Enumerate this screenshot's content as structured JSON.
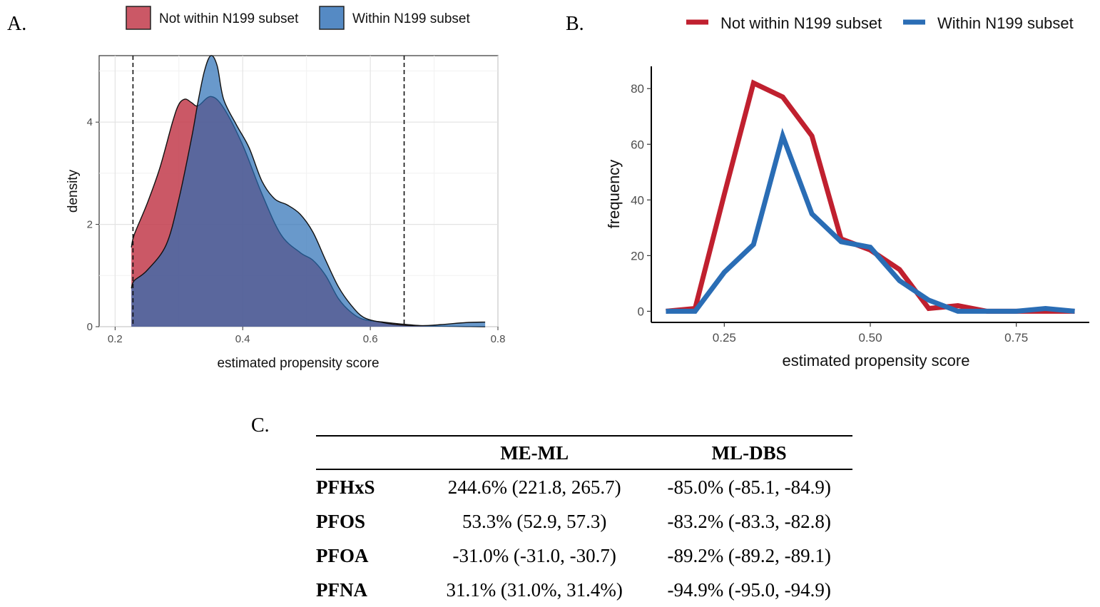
{
  "panels": {
    "a_label": "A.",
    "b_label": "B.",
    "c_label": "C."
  },
  "colors": {
    "not_within": "#c23b4b",
    "within": "#2a6db5",
    "overlap": "#3d4e8a"
  },
  "chart_data": [
    {
      "type": "area",
      "panel": "A",
      "xlabel": "estimated propensity score",
      "ylabel": "density",
      "xlim": [
        0.175,
        0.8
      ],
      "ylim": [
        0,
        5.3
      ],
      "xticks": [
        0.2,
        0.4,
        0.6,
        0.8
      ],
      "xtick_labels": [
        "0.2",
        "0.4",
        "0.6",
        "0.8"
      ],
      "yticks": [
        0,
        2,
        4
      ],
      "ytick_labels": [
        "0",
        "2",
        "4"
      ],
      "grid": true,
      "legend_position": "top",
      "vlines": [
        0.228,
        0.653
      ],
      "series": [
        {
          "name": "Not within N199 subset",
          "x": [
            0.2255,
            0.23,
            0.25,
            0.27,
            0.29,
            0.3,
            0.31,
            0.32,
            0.33,
            0.35,
            0.37,
            0.4,
            0.43,
            0.46,
            0.49,
            0.51,
            0.53,
            0.55,
            0.57,
            0.59,
            0.62,
            0.65,
            0.68,
            0.71,
            0.75,
            0.78
          ],
          "values": [
            1.55,
            1.8,
            2.4,
            3.1,
            4.0,
            4.35,
            4.45,
            4.38,
            4.32,
            4.5,
            4.28,
            3.55,
            2.6,
            1.8,
            1.45,
            1.3,
            1.0,
            0.55,
            0.28,
            0.14,
            0.09,
            0.05,
            0.02,
            0.01,
            0.005,
            0.0
          ]
        },
        {
          "name": "Within N199 subset",
          "x": [
            0.2255,
            0.23,
            0.25,
            0.28,
            0.3,
            0.32,
            0.33,
            0.34,
            0.35,
            0.36,
            0.37,
            0.39,
            0.41,
            0.43,
            0.45,
            0.47,
            0.49,
            0.51,
            0.53,
            0.55,
            0.57,
            0.59,
            0.62,
            0.65,
            0.68,
            0.71,
            0.75,
            0.78
          ],
          "values": [
            0.75,
            0.9,
            1.1,
            1.6,
            2.5,
            3.7,
            4.4,
            5.0,
            5.3,
            5.1,
            4.45,
            3.95,
            3.5,
            2.85,
            2.5,
            2.38,
            2.2,
            1.85,
            1.3,
            0.78,
            0.42,
            0.18,
            0.08,
            0.03,
            0.02,
            0.04,
            0.08,
            0.09
          ]
        }
      ]
    },
    {
      "type": "line",
      "panel": "B",
      "xlabel": "estimated propensity score",
      "ylabel": "frequency",
      "xlim": [
        0.125,
        0.875
      ],
      "ylim": [
        -4,
        88
      ],
      "xticks": [
        0.25,
        0.5,
        0.75
      ],
      "xtick_labels": [
        "0.25",
        "0.50",
        "0.75"
      ],
      "yticks": [
        0,
        20,
        40,
        60,
        80
      ],
      "ytick_labels": [
        "0",
        "20",
        "40",
        "60",
        "80"
      ],
      "grid": false,
      "legend_position": "top",
      "series": [
        {
          "name": "Not within N199 subset",
          "x": [
            0.15,
            0.2,
            0.25,
            0.3,
            0.35,
            0.4,
            0.45,
            0.5,
            0.55,
            0.6,
            0.65,
            0.7,
            0.75,
            0.8,
            0.85
          ],
          "values": [
            0,
            1,
            42,
            82,
            77,
            63,
            26,
            22,
            15,
            1,
            2,
            0,
            0,
            0,
            0
          ]
        },
        {
          "name": "Within N199 subset",
          "x": [
            0.15,
            0.2,
            0.25,
            0.3,
            0.35,
            0.4,
            0.45,
            0.5,
            0.55,
            0.6,
            0.65,
            0.7,
            0.75,
            0.8,
            0.85
          ],
          "values": [
            0,
            0,
            14,
            24,
            63,
            35,
            25,
            23,
            11,
            4,
            0,
            0,
            0,
            1,
            0
          ]
        }
      ]
    },
    {
      "type": "table",
      "panel": "C",
      "columns": [
        "",
        "ME-ML",
        "ML-DBS"
      ],
      "rows": [
        [
          "PFHxS",
          "244.6% (221.8, 265.7)",
          "-85.0% (-85.1, -84.9)"
        ],
        [
          "PFOS",
          "53.3% (52.9, 57.3)",
          "-83.2% (-83.3, -82.8)"
        ],
        [
          "PFOA",
          "-31.0% (-31.0, -30.7)",
          "-89.2% (-89.2, -89.1)"
        ],
        [
          "PFNA",
          "31.1% (31.0%, 31.4%)",
          "-94.9% (-95.0, -94.9)"
        ]
      ]
    }
  ]
}
